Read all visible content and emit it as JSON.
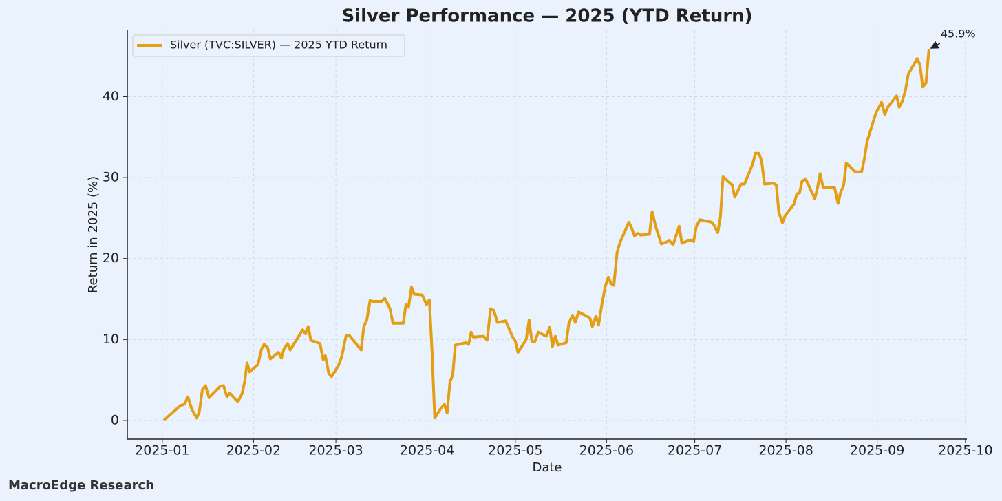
{
  "chart_data": {
    "type": "line",
    "title": "Silver Performance — 2025 (YTD Return)",
    "x_label": "Date",
    "y_label": "Return in 2025 (%)",
    "source": "MacroEdge Research",
    "grid": true,
    "legend": "upper left",
    "xlim": [
      -11.9,
      273.5
    ],
    "ylim": [
      -2.3,
      48.2
    ],
    "xticks": [
      {
        "value": 0,
        "label": "2025-01"
      },
      {
        "value": 31,
        "label": "2025-02"
      },
      {
        "value": 59,
        "label": "2025-03"
      },
      {
        "value": 90,
        "label": "2025-04"
      },
      {
        "value": 120,
        "label": "2025-05"
      },
      {
        "value": 151,
        "label": "2025-06"
      },
      {
        "value": 181,
        "label": "2025-07"
      },
      {
        "value": 212,
        "label": "2025-08"
      },
      {
        "value": 243,
        "label": "2025-09"
      },
      {
        "value": 273,
        "label": "2025-10"
      }
    ],
    "yticks": [
      0,
      10,
      20,
      30,
      40
    ],
    "x": [
      0.5,
      2,
      6,
      7.5,
      8.7,
      10,
      11.7,
      12.6,
      13.6,
      14.7,
      15.9,
      19.6,
      20.8,
      22,
      22.9,
      25.7,
      27.1,
      28,
      28.8,
      29.7,
      32.5,
      33.7,
      34.6,
      35.8,
      36.7,
      39.5,
      40.5,
      41.4,
      42.6,
      43.5,
      47.7,
      48.7,
      49.6,
      50.5,
      53.6,
      54.7,
      55.4,
      56.6,
      57.5,
      59.9,
      61,
      62.5,
      63.6,
      67.6,
      68.5,
      69.5,
      70.6,
      71.6,
      74.6,
      75.6,
      77.4,
      78.4,
      81.9,
      82.8,
      83.7,
      84.7,
      85.6,
      88.4,
      89.8,
      90.8,
      91.7,
      92.6,
      94.5,
      95.9,
      96.8,
      97.8,
      98.7,
      99.6,
      103.2,
      104.1,
      105,
      105.7,
      109.2,
      110.4,
      111.6,
      112.7,
      113.9,
      116.7,
      119.1,
      120,
      120.9,
      123.7,
      124.7,
      125.6,
      126.6,
      127.8,
      130.5,
      131.7,
      132.6,
      133.6,
      134.5,
      137.3,
      138.2,
      139.4,
      140.4,
      141.5,
      145.3,
      146.2,
      147.4,
      148.3,
      149.5,
      150.6,
      151.6,
      152.5,
      153.5,
      154.6,
      155.6,
      158.6,
      159.5,
      160.5,
      161.6,
      162.6,
      165.6,
      166.5,
      167.7,
      169.6,
      172.4,
      173.6,
      175.7,
      176.6,
      179.4,
      180.6,
      181.5,
      182.7,
      186.7,
      187.6,
      188.8,
      189.7,
      190.6,
      193.7,
      194.6,
      195.8,
      196.7,
      197.9,
      200.7,
      201.6,
      202.8,
      203.7,
      204.7,
      207.7,
      208.7,
      209.6,
      210.8,
      211.7,
      214.7,
      215.7,
      216.6,
      217.5,
      218.7,
      221.8,
      222.7,
      223.6,
      224.6,
      228.5,
      229.7,
      230.6,
      231.6,
      232.5,
      235.6,
      236.5,
      237.7,
      238.6,
      239.6,
      242.6,
      244.5,
      245.6,
      246.6,
      249.6,
      250.5,
      251.5,
      252.6,
      253.6,
      256.6,
      257.5,
      258.5,
      259.6,
      260.6
    ],
    "series": [
      {
        "name": "Silver (TVC:SILVER) — 2025 YTD Return",
        "color": "#e39e14",
        "values": [
          0,
          0.5,
          1.8,
          2,
          2.9,
          1.4,
          0.3,
          1.1,
          3.8,
          4.3,
          2.8,
          4.2,
          4.3,
          2.9,
          3.4,
          2.3,
          3.3,
          4.8,
          7.1,
          6.0,
          6.9,
          8.8,
          9.4,
          9.0,
          7.6,
          8.4,
          7.7,
          8.9,
          9.5,
          8.7,
          11.2,
          10.7,
          11.6,
          9.9,
          9.5,
          7.5,
          8.0,
          5.8,
          5.4,
          6.8,
          7.9,
          10.5,
          10.5,
          8.7,
          11.6,
          12.4,
          14.8,
          14.7,
          14.7,
          15.1,
          13.8,
          12.0,
          12.0,
          14.3,
          14.0,
          16.5,
          15.6,
          15.5,
          14.3,
          14.9,
          8.3,
          0.3,
          1.4,
          2.0,
          0.9,
          4.8,
          5.6,
          9.3,
          9.6,
          9.4,
          10.9,
          10.3,
          10.4,
          9.9,
          13.8,
          13.6,
          12.1,
          12.3,
          10.3,
          9.8,
          8.4,
          10.0,
          12.4,
          9.8,
          9.7,
          10.9,
          10.4,
          11.5,
          9.1,
          10.4,
          9.3,
          9.6,
          12.0,
          13.0,
          12.1,
          13.4,
          12.7,
          11.6,
          12.9,
          11.8,
          14.5,
          16.6,
          17.7,
          16.9,
          16.7,
          20.8,
          22.0,
          24.5,
          23.8,
          22.8,
          23.1,
          22.9,
          23.0,
          25.8,
          24.0,
          21.8,
          22.2,
          21.7,
          24.0,
          21.9,
          22.3,
          22.1,
          23.9,
          24.8,
          24.5,
          24.1,
          23.2,
          25.1,
          30.1,
          29.1,
          27.6,
          28.5,
          29.2,
          29.2,
          31.7,
          33.0,
          33.0,
          32.1,
          29.2,
          29.3,
          29.1,
          25.7,
          24.4,
          25.3,
          26.7,
          28.0,
          28.1,
          29.6,
          29.8,
          27.4,
          28.7,
          30.5,
          28.8,
          28.8,
          26.8,
          28.2,
          29.0,
          31.8,
          30.7,
          30.7,
          30.7,
          32.2,
          34.5,
          38.0,
          39.3,
          37.8,
          38.7,
          40.1,
          38.7,
          39.4,
          40.8,
          42.8,
          44.7,
          44.0,
          41.2,
          41.7,
          45.9
        ]
      }
    ],
    "annotation": {
      "value": 45.9,
      "label": "45.9%"
    }
  }
}
